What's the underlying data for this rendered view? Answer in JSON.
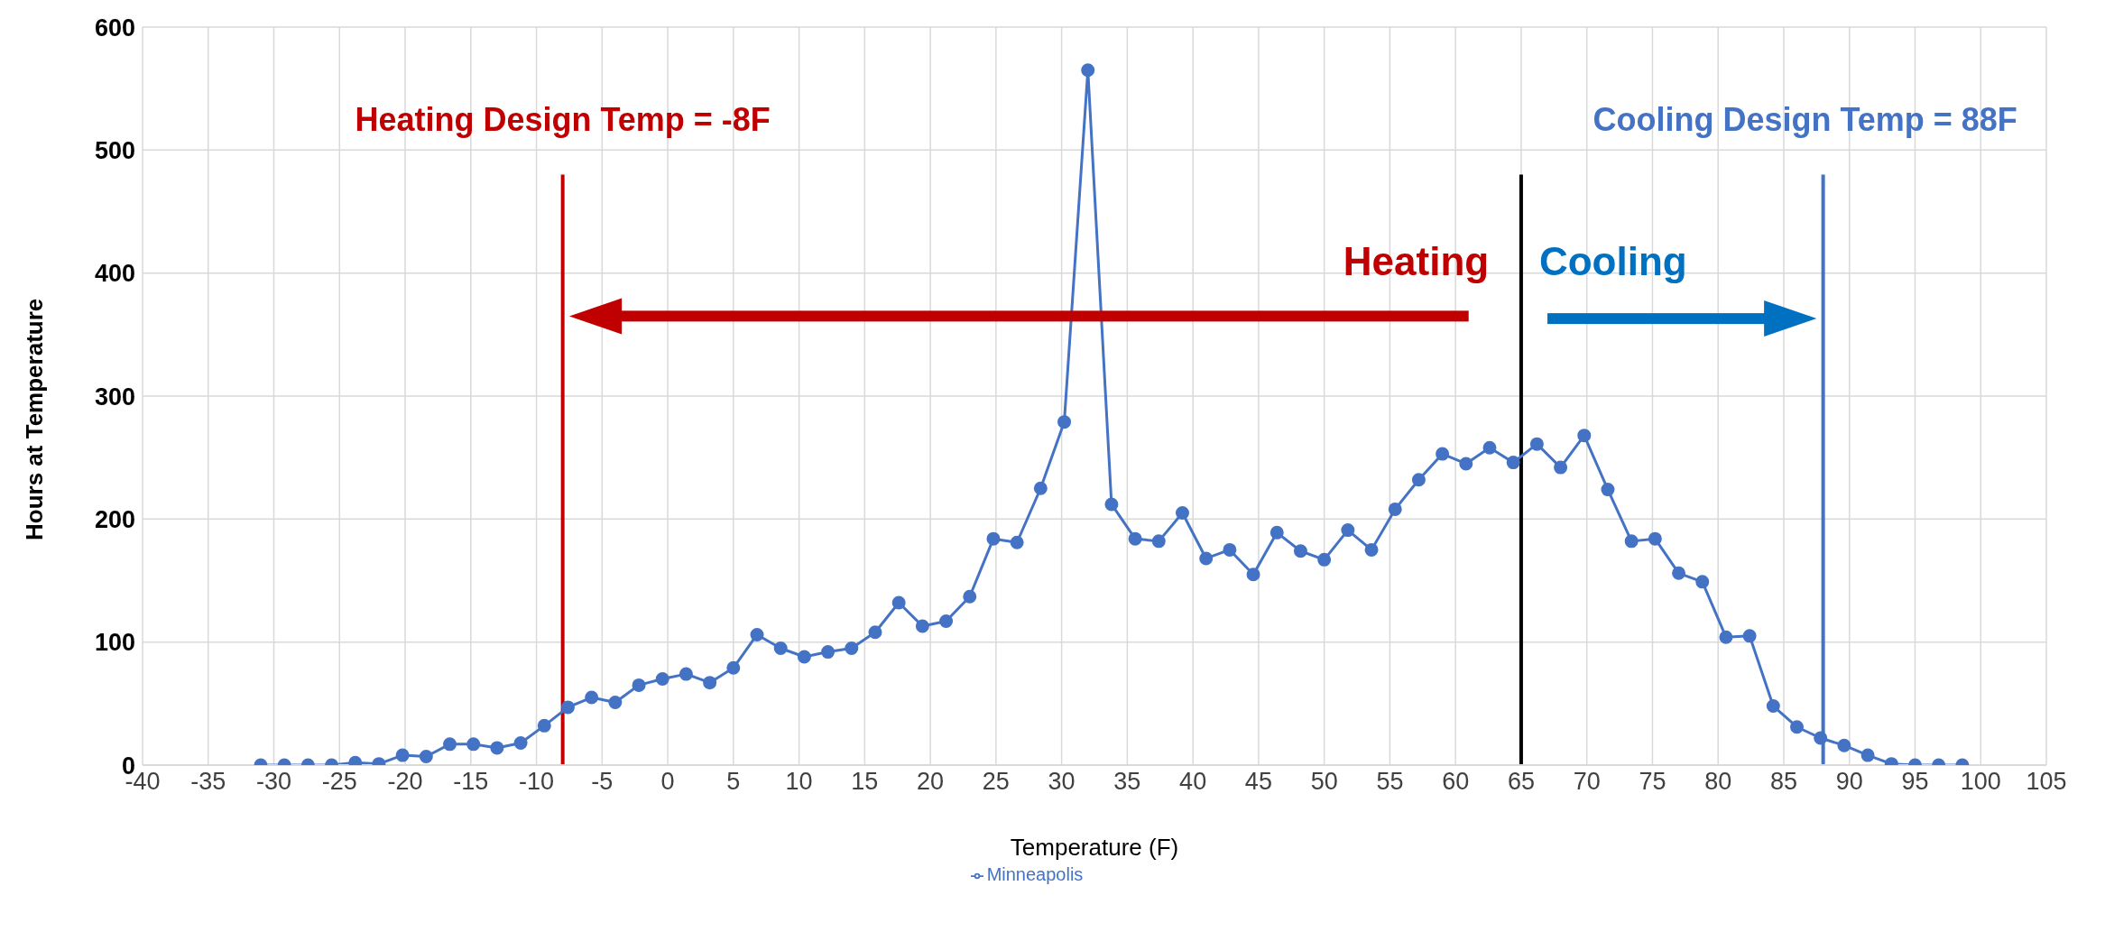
{
  "chart_data": {
    "type": "line",
    "xlabel": "Temperature (F)",
    "ylabel": "Hours at Temperature",
    "x": [
      -31,
      -29.2,
      -27.4,
      -25.6,
      -23.8,
      -22,
      -20.2,
      -18.4,
      -16.6,
      -14.8,
      -13,
      -11.2,
      -9.4,
      -7.6,
      -5.8,
      -4,
      -2.2,
      -0.4,
      1.4,
      3.2,
      5,
      6.8,
      8.6,
      10.4,
      12.2,
      14,
      15.8,
      17.6,
      19.4,
      21.2,
      23,
      24.8,
      26.6,
      28.4,
      30.2,
      32,
      33.8,
      35.6,
      37.4,
      39.2,
      41,
      42.8,
      44.6,
      46.4,
      48.2,
      50,
      51.8,
      53.6,
      55.4,
      57.2,
      59,
      60.8,
      62.6,
      64.4,
      66.2,
      68,
      69.8,
      71.6,
      73.4,
      75.2,
      77,
      78.8,
      80.6,
      82.4,
      84.2,
      86,
      87.8,
      89.6,
      91.4,
      93.2,
      95,
      96.8,
      98.6
    ],
    "series": [
      {
        "name": "Minneapolis",
        "color": "#4472c4",
        "values": [
          0,
          0,
          0,
          0,
          2,
          1,
          8,
          7,
          17,
          17,
          14,
          18,
          32,
          47,
          55,
          51,
          65,
          70,
          74,
          67,
          79,
          106,
          95,
          88,
          92,
          95,
          108,
          132,
          113,
          117,
          137,
          184,
          181,
          225,
          279,
          565,
          212,
          184,
          182,
          205,
          168,
          175,
          155,
          189,
          174,
          167,
          191,
          175,
          208,
          232,
          253,
          245,
          258,
          246,
          261,
          242,
          268,
          224,
          182,
          184,
          156,
          149,
          104,
          105,
          48,
          31,
          22,
          16,
          8,
          1,
          0,
          0,
          0
        ]
      }
    ],
    "xlim": [
      -40,
      105
    ],
    "xticks": [
      -40,
      -35,
      -30,
      -25,
      -20,
      -15,
      -10,
      -5,
      0,
      5,
      10,
      15,
      20,
      25,
      30,
      35,
      40,
      45,
      50,
      55,
      60,
      65,
      70,
      75,
      80,
      85,
      90,
      95,
      100,
      105
    ],
    "ylim": [
      0,
      600
    ],
    "yticks": [
      0,
      100,
      200,
      300,
      400,
      500,
      600
    ],
    "grid": true,
    "legend": "bottom",
    "marker": "circle",
    "line_style": "solid",
    "ref_lines": [
      {
        "axis": "x",
        "value": -8,
        "label": "Heating Design Temp = -8F",
        "color": "#c00000"
      },
      {
        "axis": "x",
        "value": 88,
        "label": "Cooling Design Temp = 88F",
        "color": "#4472c4"
      },
      {
        "axis": "x",
        "value": 65,
        "color": "#000000"
      }
    ],
    "annotations": [
      "Heating",
      "Cooling"
    ]
  }
}
